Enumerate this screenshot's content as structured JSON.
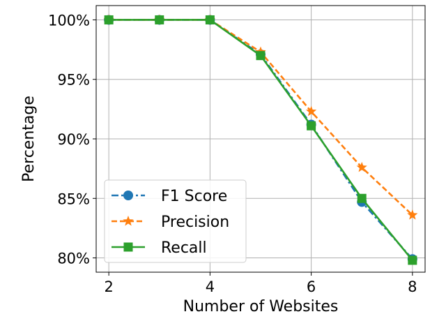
{
  "chart_data": {
    "type": "line",
    "title": "",
    "xlabel": "Number of Websites",
    "ylabel": "Percentage",
    "x": [
      2,
      3,
      4,
      5,
      6,
      7,
      8
    ],
    "xlim": [
      1.75,
      8.25
    ],
    "ylim": [
      78.8,
      101.2
    ],
    "xticks": [
      "2",
      "4",
      "6",
      "8"
    ],
    "yticks": [
      "80%",
      "85%",
      "90%",
      "95%",
      "100%"
    ],
    "grid": true,
    "legend_position": "lower-left",
    "series": [
      {
        "name": "F1 Score",
        "values": [
          100,
          100,
          100,
          97.1,
          91.2,
          84.7,
          79.9
        ],
        "color": "#1f77b4",
        "marker": "circle",
        "line_style": "dashdot"
      },
      {
        "name": "Precision",
        "values": [
          100,
          100,
          100,
          97.3,
          92.3,
          87.6,
          83.6
        ],
        "color": "#ff7f0e",
        "marker": "star",
        "line_style": "dashed"
      },
      {
        "name": "Recall",
        "values": [
          100,
          100,
          100,
          97.0,
          91.1,
          85.0,
          79.8
        ],
        "color": "#2ca02c",
        "marker": "square",
        "line_style": "solid"
      }
    ]
  }
}
